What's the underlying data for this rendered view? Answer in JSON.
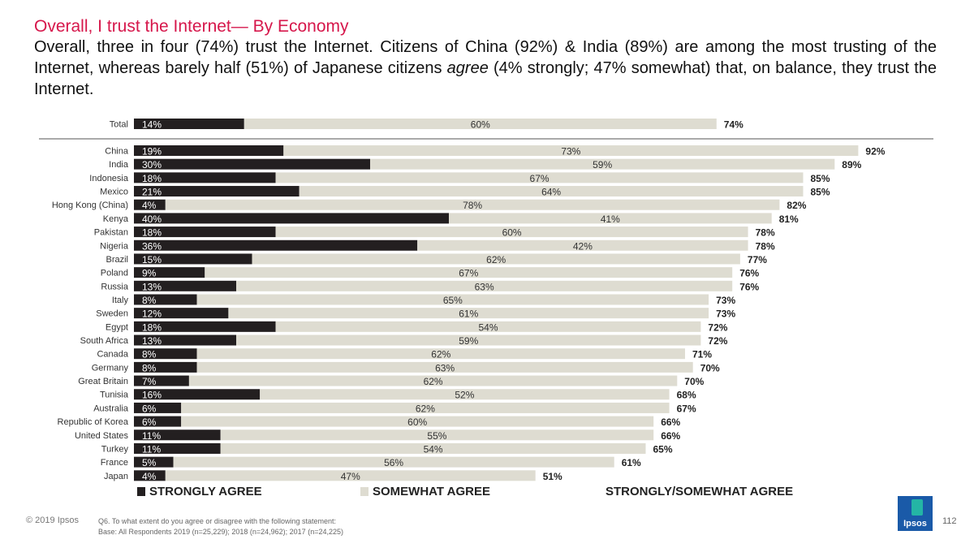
{
  "header": {
    "title": "Overall, I trust the Internet— By Economy",
    "subtitle_part1": "Overall, three in four (74%) trust the Internet. Citizens of China (92%) & India (89%) are among the most trusting of the Internet, whereas barely half (51%) of Japanese citizens ",
    "subtitle_em": "agree",
    "subtitle_part2": " (4% strongly; 47% somewhat) that, on balance, they trust the Internet."
  },
  "colors": {
    "strongly": "#231f20",
    "somewhat": "#dedcd1",
    "title": "#d6174b"
  },
  "chart_data": {
    "type": "bar",
    "orientation": "horizontal",
    "stacked": true,
    "title": "Overall, I trust the Internet— By Economy",
    "xlim": [
      0,
      100
    ],
    "categories": [
      "Total",
      "China",
      "India",
      "Indonesia",
      "Mexico",
      "Hong Kong (China)",
      "Kenya",
      "Pakistan",
      "Nigeria",
      "Brazil",
      "Poland",
      "Russia",
      "Italy",
      "Sweden",
      "Egypt",
      "South Africa",
      "Canada",
      "Germany",
      "Great Britain",
      "Tunisia",
      "Australia",
      "Republic of Korea",
      "United States",
      "Turkey",
      "France",
      "Japan"
    ],
    "series": [
      {
        "name": "STRONGLY AGREE",
        "values": [
          14,
          19,
          30,
          18,
          21,
          4,
          40,
          18,
          36,
          15,
          9,
          13,
          8,
          12,
          18,
          13,
          8,
          8,
          7,
          16,
          6,
          6,
          11,
          11,
          5,
          4
        ]
      },
      {
        "name": "SOMEWHAT AGREE",
        "values": [
          60,
          73,
          59,
          67,
          64,
          78,
          41,
          60,
          42,
          62,
          67,
          63,
          65,
          61,
          54,
          59,
          62,
          63,
          62,
          52,
          62,
          60,
          55,
          54,
          56,
          47
        ]
      }
    ],
    "totals_label": "STRONGLY/SOMEWHAT AGREE",
    "totals": [
      74,
      92,
      89,
      85,
      85,
      82,
      81,
      78,
      78,
      77,
      76,
      76,
      73,
      73,
      72,
      72,
      71,
      70,
      70,
      68,
      67,
      66,
      66,
      65,
      61,
      51
    ]
  },
  "legend": {
    "strongly_label": "STRONGLY AGREE",
    "somewhat_label": "SOMEWHAT AGREE",
    "total_label": "STRONGLY/SOMEWHAT AGREE"
  },
  "footer": {
    "copyright": "© 2019 Ipsos",
    "question": "Q6.  To what extent do you agree or disagree with the following statement:",
    "base": "Base: All Respondents 2019 (n=25,229);  2018 (n=24,962); 2017 (n=24,225)",
    "logo_text": "Ipsos",
    "page_number": "112"
  }
}
